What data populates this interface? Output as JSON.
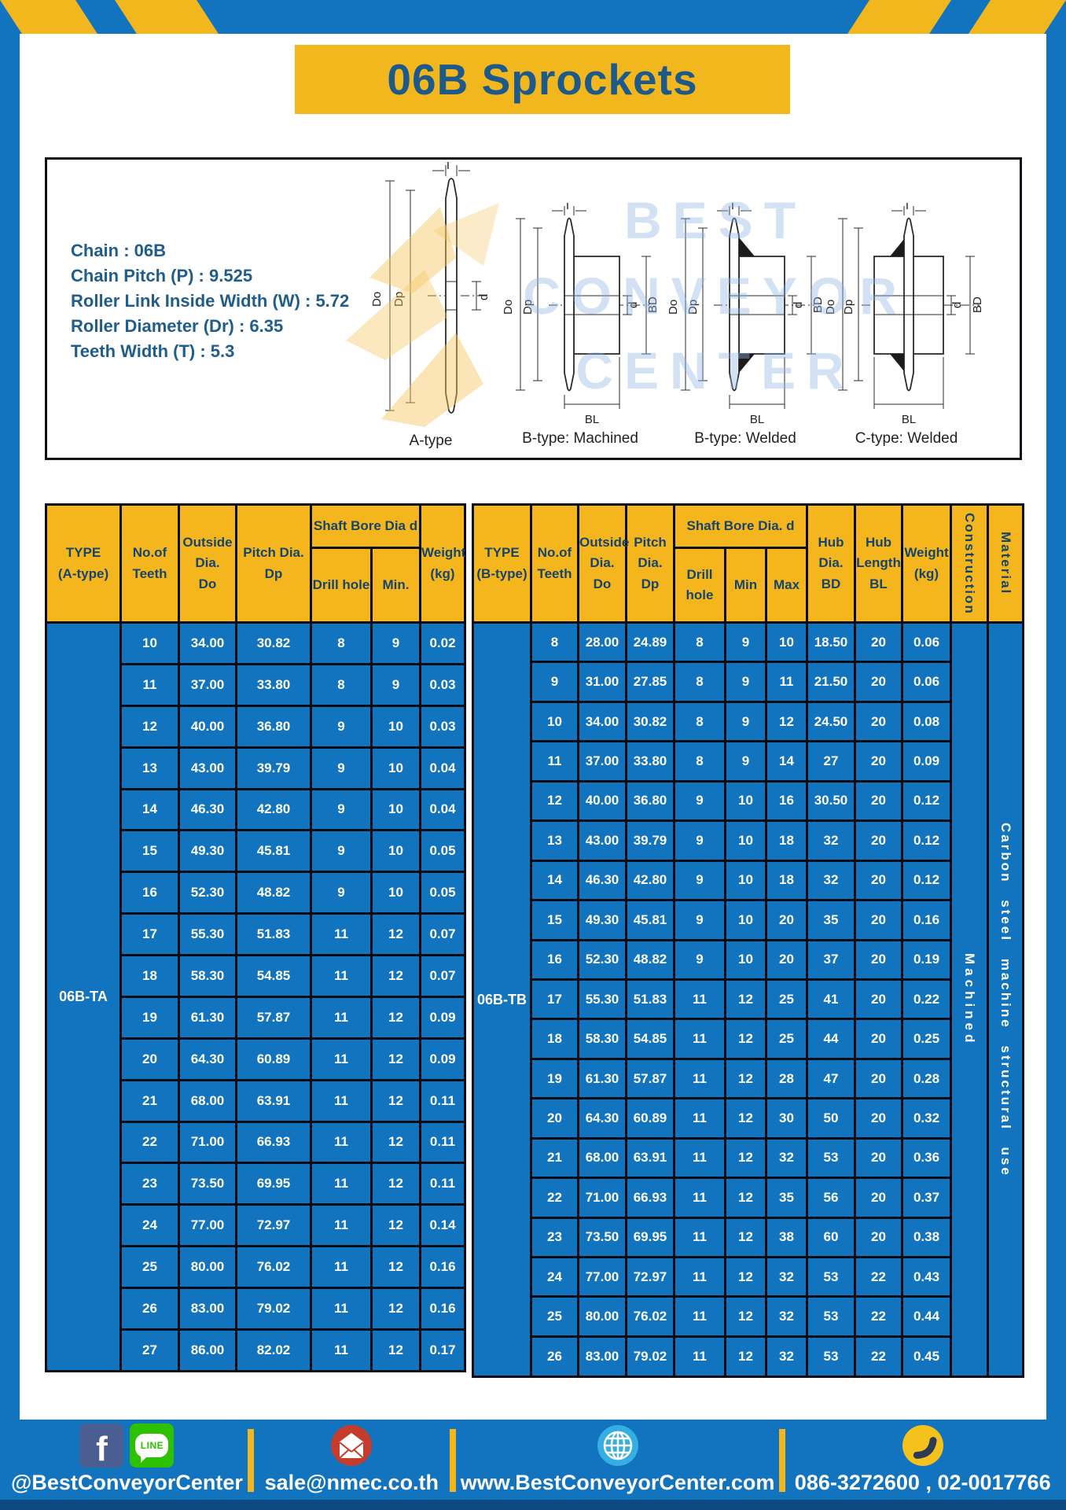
{
  "page": {
    "title": "06B Sprockets"
  },
  "specs": {
    "lines": [
      "Chain : 06B",
      "Chain Pitch (P) : 9.525",
      "Roller Link Inside Width (W) : 5.72",
      "Roller Diameter (Dr) : 6.35",
      "Teeth Width (T) : 5.3"
    ],
    "diagram_labels": [
      "A-type",
      "B-type: Machined",
      "B-type: Welded",
      "C-type: Welded"
    ],
    "dims": {
      "t": "T",
      "dia_o": "Do",
      "dia_p": "Dp",
      "d": "d",
      "bd": "BD",
      "bl": "BL"
    }
  },
  "watermark": {
    "lines": [
      "BEST",
      "CONVEYOR",
      "CENTER"
    ]
  },
  "table_a": {
    "headers": {
      "type": "TYPE\n(A-type)",
      "teeth": "No.of\nTeeth",
      "outside": "Outside\nDia.\nDo",
      "pitch": "Pitch Dia.\nDp",
      "shaft_group": "Shaft Bore Dia d",
      "drill": "Drill hole",
      "min": "Min.",
      "weight": "Weight\n(kg)"
    },
    "type_value": "06B-TA",
    "rows": [
      [
        "10",
        "34.00",
        "30.82",
        "8",
        "9",
        "0.02"
      ],
      [
        "11",
        "37.00",
        "33.80",
        "8",
        "9",
        "0.03"
      ],
      [
        "12",
        "40.00",
        "36.80",
        "9",
        "10",
        "0.03"
      ],
      [
        "13",
        "43.00",
        "39.79",
        "9",
        "10",
        "0.04"
      ],
      [
        "14",
        "46.30",
        "42.80",
        "9",
        "10",
        "0.04"
      ],
      [
        "15",
        "49.30",
        "45.81",
        "9",
        "10",
        "0.05"
      ],
      [
        "16",
        "52.30",
        "48.82",
        "9",
        "10",
        "0.05"
      ],
      [
        "17",
        "55.30",
        "51.83",
        "11",
        "12",
        "0.07"
      ],
      [
        "18",
        "58.30",
        "54.85",
        "11",
        "12",
        "0.07"
      ],
      [
        "19",
        "61.30",
        "57.87",
        "11",
        "12",
        "0.09"
      ],
      [
        "20",
        "64.30",
        "60.89",
        "11",
        "12",
        "0.09"
      ],
      [
        "21",
        "68.00",
        "63.91",
        "11",
        "12",
        "0.11"
      ],
      [
        "22",
        "71.00",
        "66.93",
        "11",
        "12",
        "0.11"
      ],
      [
        "23",
        "73.50",
        "69.95",
        "11",
        "12",
        "0.11"
      ],
      [
        "24",
        "77.00",
        "72.97",
        "11",
        "12",
        "0.14"
      ],
      [
        "25",
        "80.00",
        "76.02",
        "11",
        "12",
        "0.16"
      ],
      [
        "26",
        "83.00",
        "79.02",
        "11",
        "12",
        "0.16"
      ],
      [
        "27",
        "86.00",
        "82.02",
        "11",
        "12",
        "0.17"
      ]
    ]
  },
  "table_b": {
    "headers": {
      "type": "TYPE\n(B-type)",
      "teeth": "No.of\nTeeth",
      "outside": "Outside\nDia.\nDo",
      "pitch": "Pitch\nDia.\nDp",
      "shaft_group": "Shaft Bore Dia. d",
      "drill": "Drill hole",
      "min": "Min",
      "max": "Max",
      "hub_dia": "Hub\nDia.\nBD",
      "hub_len": "Hub\nLength\nBL",
      "weight": "Weight\n(kg)",
      "construction": "Construction",
      "material": "Material"
    },
    "type_value": "06B-TB",
    "construction_value": "Machined",
    "material_value": "Carbon steel machine structural use",
    "rows": [
      [
        "8",
        "28.00",
        "24.89",
        "8",
        "9",
        "10",
        "18.50",
        "20",
        "0.06"
      ],
      [
        "9",
        "31.00",
        "27.85",
        "8",
        "9",
        "11",
        "21.50",
        "20",
        "0.06"
      ],
      [
        "10",
        "34.00",
        "30.82",
        "8",
        "9",
        "12",
        "24.50",
        "20",
        "0.08"
      ],
      [
        "11",
        "37.00",
        "33.80",
        "8",
        "9",
        "14",
        "27",
        "20",
        "0.09"
      ],
      [
        "12",
        "40.00",
        "36.80",
        "9",
        "10",
        "16",
        "30.50",
        "20",
        "0.12"
      ],
      [
        "13",
        "43.00",
        "39.79",
        "9",
        "10",
        "18",
        "32",
        "20",
        "0.12"
      ],
      [
        "14",
        "46.30",
        "42.80",
        "9",
        "10",
        "18",
        "32",
        "20",
        "0.12"
      ],
      [
        "15",
        "49.30",
        "45.81",
        "9",
        "10",
        "20",
        "35",
        "20",
        "0.16"
      ],
      [
        "16",
        "52.30",
        "48.82",
        "9",
        "10",
        "20",
        "37",
        "20",
        "0.19"
      ],
      [
        "17",
        "55.30",
        "51.83",
        "11",
        "12",
        "25",
        "41",
        "20",
        "0.22"
      ],
      [
        "18",
        "58.30",
        "54.85",
        "11",
        "12",
        "25",
        "44",
        "20",
        "0.25"
      ],
      [
        "19",
        "61.30",
        "57.87",
        "11",
        "12",
        "28",
        "47",
        "20",
        "0.28"
      ],
      [
        "20",
        "64.30",
        "60.89",
        "11",
        "12",
        "30",
        "50",
        "20",
        "0.32"
      ],
      [
        "21",
        "68.00",
        "63.91",
        "11",
        "12",
        "32",
        "53",
        "20",
        "0.36"
      ],
      [
        "22",
        "71.00",
        "66.93",
        "11",
        "12",
        "35",
        "56",
        "20",
        "0.37"
      ],
      [
        "23",
        "73.50",
        "69.95",
        "11",
        "12",
        "38",
        "60",
        "20",
        "0.38"
      ],
      [
        "24",
        "77.00",
        "72.97",
        "11",
        "12",
        "32",
        "53",
        "22",
        "0.43"
      ],
      [
        "25",
        "80.00",
        "76.02",
        "11",
        "12",
        "32",
        "53",
        "22",
        "0.44"
      ],
      [
        "26",
        "83.00",
        "79.02",
        "11",
        "12",
        "32",
        "53",
        "22",
        "0.45"
      ]
    ]
  },
  "footer": {
    "facebook_glyph": "f",
    "line_text": "LINE",
    "items": [
      {
        "label": "@BestConveyorCenter"
      },
      {
        "label": "sale@nmec.co.th"
      },
      {
        "label": "www.BestConveyorCenter.com"
      },
      {
        "label": "086-3272600 , 02-0017766"
      }
    ]
  },
  "colors": {
    "blue": "#1273BF",
    "yellow": "#F3B71E",
    "navy_text": "#1E5A89",
    "header_text": "#16456B",
    "dark_strip": "#0C4B82"
  }
}
